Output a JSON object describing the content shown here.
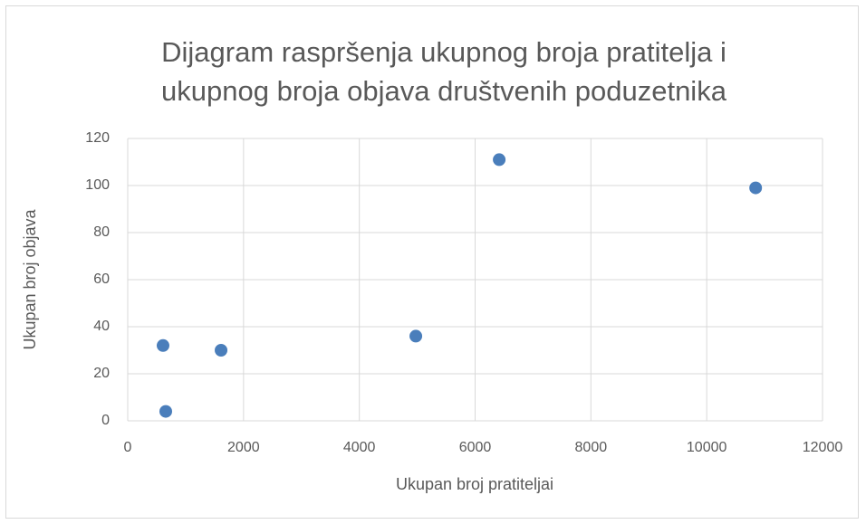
{
  "chart_data": {
    "type": "scatter",
    "title": "Dijagram raspršenja ukupnog broja pratitelja i ukupnog broja objava društvenih poduzetnika",
    "x_label": "Ukupan broj pratiteljai",
    "y_label": "Ukupan broj objava",
    "series": [
      {
        "name": "Ukupan broj objava",
        "color": "#4a7ebb",
        "x": [
          610,
          657,
          1612,
          4976,
          6416,
          10845
        ],
        "values": [
          32,
          4,
          30,
          36,
          111,
          99
        ]
      }
    ],
    "xlim": [
      0,
      12000
    ],
    "xticks": [
      0,
      2000,
      4000,
      6000,
      8000,
      10000,
      12000
    ],
    "ylim": [
      0,
      120
    ],
    "yticks": [
      0,
      20,
      40,
      60,
      80,
      100,
      120
    ],
    "grid": true
  }
}
